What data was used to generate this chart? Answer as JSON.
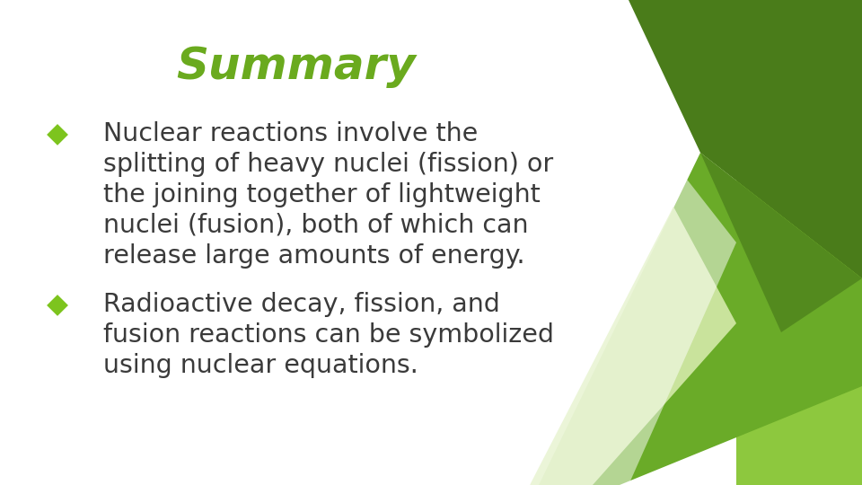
{
  "title": "Summary",
  "title_color": "#6aaa1e",
  "title_fontsize": 36,
  "background_color": "#ffffff",
  "text_color": "#3a3a3a",
  "bullet_color": "#7dc41e",
  "bullet_char": "◆",
  "body_fontsize": 20.5,
  "bullet1_lines": [
    "Nuclear reactions involve the",
    "splitting of heavy nuclei (fission) or",
    "the joining together of lightweight",
    "nuclei (fusion), both of which can",
    "release large amounts of energy."
  ],
  "bullet2_lines": [
    "Radioactive decay, fission, and",
    "fusion reactions can be symbolized",
    "using nuclear equations."
  ],
  "green_dark": "#4a7c1a",
  "green_medium": "#5a9a28",
  "green_light": "#d4eaaa",
  "green_bright": "#8dc83e",
  "green_mid2": "#6aab28"
}
